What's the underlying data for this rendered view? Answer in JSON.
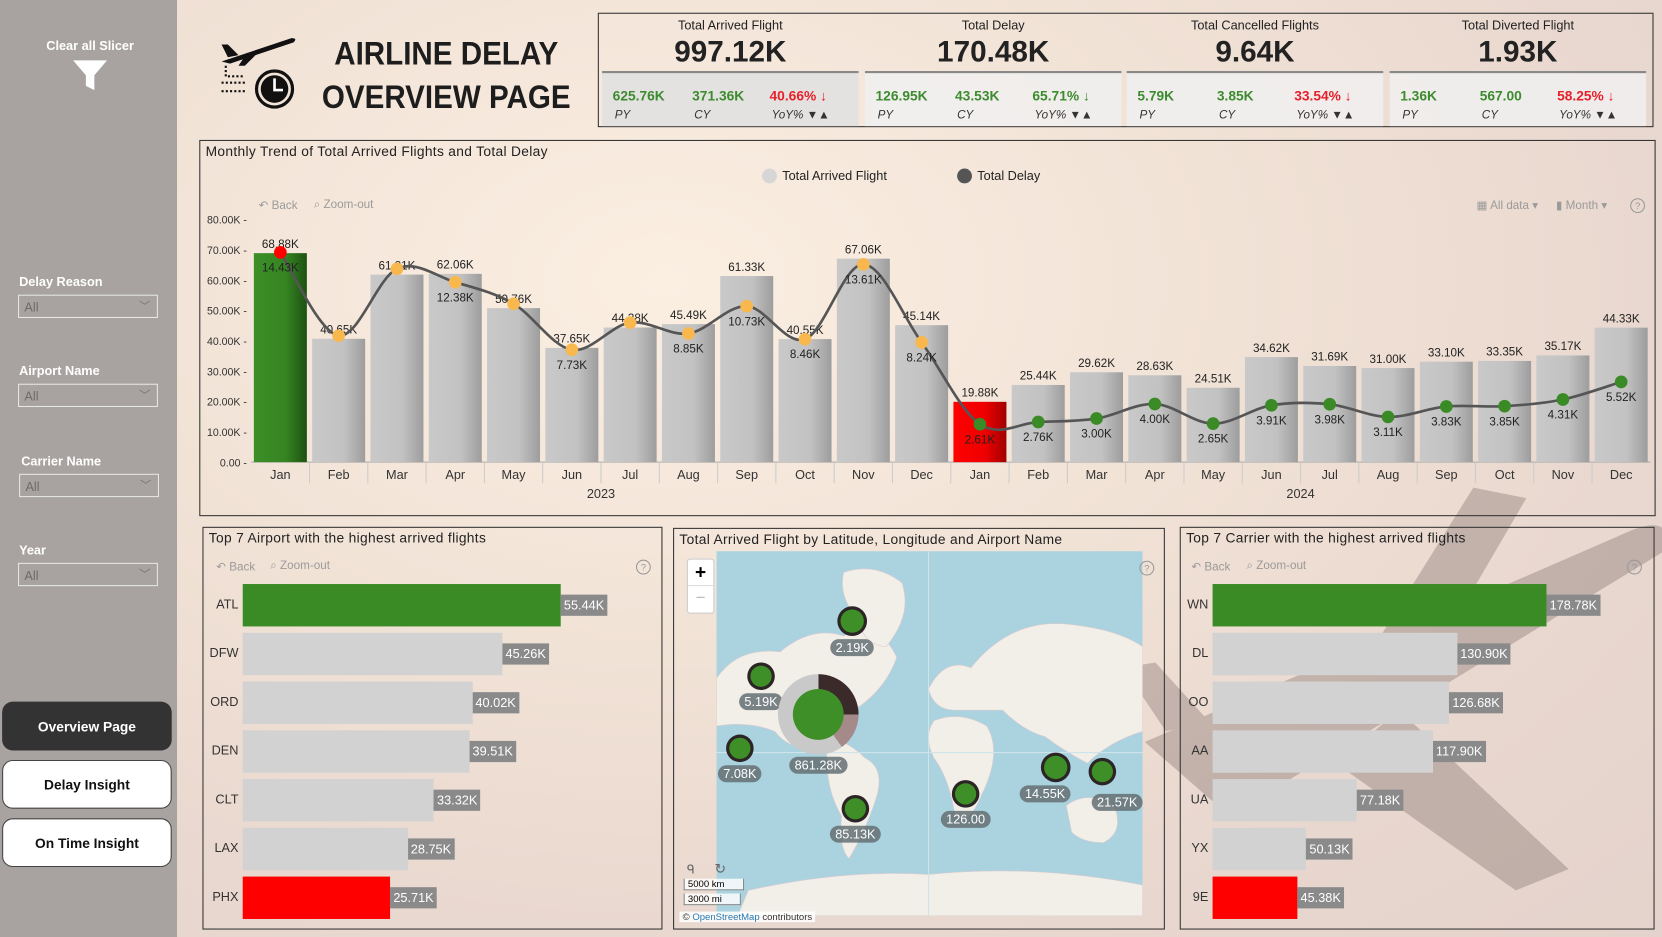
{
  "sidebar": {
    "clear_label": "Clear all Slicer",
    "slicers": [
      {
        "label": "Delay Reason",
        "value": "All"
      },
      {
        "label": "Airport Name",
        "value": "All"
      },
      {
        "label": "Carrier Name",
        "value": "All"
      },
      {
        "label": "Year",
        "value": "All"
      }
    ],
    "nav": [
      {
        "label": "Overview Page",
        "active": true
      },
      {
        "label": "Delay Insight",
        "active": false
      },
      {
        "label": "On Time Insight",
        "active": false
      }
    ]
  },
  "header": {
    "title_line1": "AIRLINE DELAY",
    "title_line2": "OVERVIEW PAGE"
  },
  "kpis": [
    {
      "title": "Total Arrived Flight",
      "value": "997.12K",
      "py": "625.76K",
      "cy": "371.36K",
      "yoy": "40.66% ↓",
      "yoy_color": "#e8202a",
      "py_label": "PY",
      "cy_label": "CY",
      "yoy_label": "YoY% ▼▲"
    },
    {
      "title": "Total Delay",
      "value": "170.48K",
      "py": "126.95K",
      "cy": "43.53K",
      "yoy": "65.71% ↓",
      "yoy_color": "#3d8b2f",
      "py_label": "PY",
      "cy_label": "CY",
      "yoy_label": "YoY% ▼▲"
    },
    {
      "title": "Total Cancelled Flights",
      "value": "9.64K",
      "py": "5.79K",
      "cy": "3.85K",
      "yoy": "33.54% ↓",
      "yoy_color": "#e8202a",
      "py_label": "PY",
      "cy_label": "CY",
      "yoy_label": "YoY% ▼▲"
    },
    {
      "title": "Total Diverted Flight",
      "value": "1.93K",
      "py": "1.36K",
      "cy": "567.00",
      "yoy": "58.25% ↓",
      "yoy_color": "#e8202a",
      "py_label": "PY",
      "cy_label": "CY",
      "yoy_label": "YoY% ▼▲"
    }
  ],
  "trend": {
    "title": "Monthly Trend of Total Arrived Flights and Total Delay",
    "back": "Back",
    "zoom_out": "Zoom-out",
    "all_data": "All data",
    "month": "Month",
    "help": "?"
  },
  "airports_panel": {
    "title": "Top 7 Airport with the highest arrived flights",
    "back": "Back",
    "zoom_out": "Zoom-out",
    "help": "?"
  },
  "carriers_panel": {
    "title": "Top 7 Carrier with the highest arrived flights",
    "back": "Back",
    "zoom_out": "Zoom-out",
    "help": "?"
  },
  "map": {
    "title": "Total Arrived Flight by Latitude, Longitude and Airport Name",
    "zoom_in": "+",
    "zoom_out": "−",
    "help": "?",
    "scale_km": "5000 km",
    "scale_mi": "3000 mi",
    "attribution_prefix": "©",
    "attribution_link": "OpenStreetMap",
    "attribution_suffix": "contributors",
    "bubbles": [
      "2.19K",
      "5.19K",
      "861.28K",
      "7.08K",
      "85.13K",
      "126.00",
      "14.55K",
      "21.57K"
    ],
    "bubble_color": "#3f8f28"
  },
  "chart_data": [
    {
      "type": "bar+line",
      "title": "Monthly Trend of Total Arrived Flights and Total Delay",
      "categories": [
        "Jan",
        "Feb",
        "Mar",
        "Apr",
        "May",
        "Jun",
        "Jul",
        "Aug",
        "Sep",
        "Oct",
        "Nov",
        "Dec",
        "Jan",
        "Feb",
        "Mar",
        "Apr",
        "May",
        "Jun",
        "Jul",
        "Aug",
        "Sep",
        "Oct",
        "Nov",
        "Dec"
      ],
      "years": [
        "2023",
        "2024"
      ],
      "yticks": [
        "0.00",
        "10.00K",
        "20.00K",
        "30.00K",
        "40.00K",
        "50.00K",
        "60.00K",
        "70.00K",
        "80.00K"
      ],
      "ylim": [
        0,
        80000
      ],
      "legend": [
        "Total Arrived Flight",
        "Total Delay"
      ],
      "legend_position": "top",
      "series": [
        {
          "name": "Total Arrived Flight",
          "type": "bar",
          "values": [
            68880,
            40650,
            61810,
            62060,
            50760,
            37650,
            44380,
            45490,
            61330,
            40550,
            67060,
            45140,
            19880,
            25440,
            29620,
            28630,
            24510,
            34620,
            31690,
            31000,
            33100,
            33350,
            35170,
            44330
          ],
          "labels": [
            "68.88K",
            "40.65K",
            "61.81K",
            "62.06K",
            "50.76K",
            "37.65K",
            "44.38K",
            "45.49K",
            "61.33K",
            "40.55K",
            "67.06K",
            "45.14K",
            "19.88K",
            "25.44K",
            "29.62K",
            "28.63K",
            "24.51K",
            "34.62K",
            "31.69K",
            "31.00K",
            "33.10K",
            "33.35K",
            "35.17K",
            "44.33K"
          ]
        },
        {
          "name": "Total Delay",
          "type": "line",
          "values": [
            14430,
            8700,
            13300,
            12380,
            10900,
            7730,
            9600,
            8850,
            10730,
            8460,
            13610,
            8240,
            2610,
            2760,
            3000,
            4000,
            2650,
            3910,
            3980,
            3110,
            3830,
            3850,
            4310,
            5520
          ],
          "labels": [
            "14.43K",
            "",
            "",
            "12.38K",
            "",
            "7.73K",
            "",
            "8.85K",
            "10.73K",
            "8.46K",
            "13.61K",
            "8.24K",
            "2.61K",
            "2.76K",
            "3.00K",
            "4.00K",
            "2.65K",
            "3.91K",
            "3.98K",
            "3.11K",
            "3.83K",
            "3.85K",
            "4.31K",
            "5.52K"
          ]
        }
      ],
      "colors": {
        "bar": "#c4c4c4",
        "max_bar": "#3a8a26",
        "min_bar": "#ee0000",
        "line": "#555555",
        "point_2023": "#f8b84e",
        "point_2024": "#3a8a26",
        "point_max": "#ff0000"
      }
    },
    {
      "type": "bar",
      "orientation": "horizontal",
      "title": "Top 7 Airport with the highest arrived flights",
      "categories": [
        "ATL",
        "DFW",
        "ORD",
        "DEN",
        "CLT",
        "LAX",
        "PHX"
      ],
      "values": [
        55440,
        45260,
        40020,
        39510,
        33320,
        28750,
        25710
      ],
      "labels": [
        "55.44K",
        "45.26K",
        "40.02K",
        "39.51K",
        "33.32K",
        "28.75K",
        "25.71K"
      ]
    },
    {
      "type": "bar",
      "orientation": "horizontal",
      "title": "Top 7 Carrier with the highest arrived flights",
      "categories": [
        "WN",
        "DL",
        "OO",
        "AA",
        "UA",
        "YX",
        "9E"
      ],
      "values": [
        178780,
        130900,
        126680,
        117900,
        77180,
        50130,
        45380
      ],
      "labels": [
        "178.78K",
        "130.90K",
        "126.68K",
        "117.90K",
        "77.18K",
        "50.13K",
        "45.38K"
      ]
    }
  ]
}
